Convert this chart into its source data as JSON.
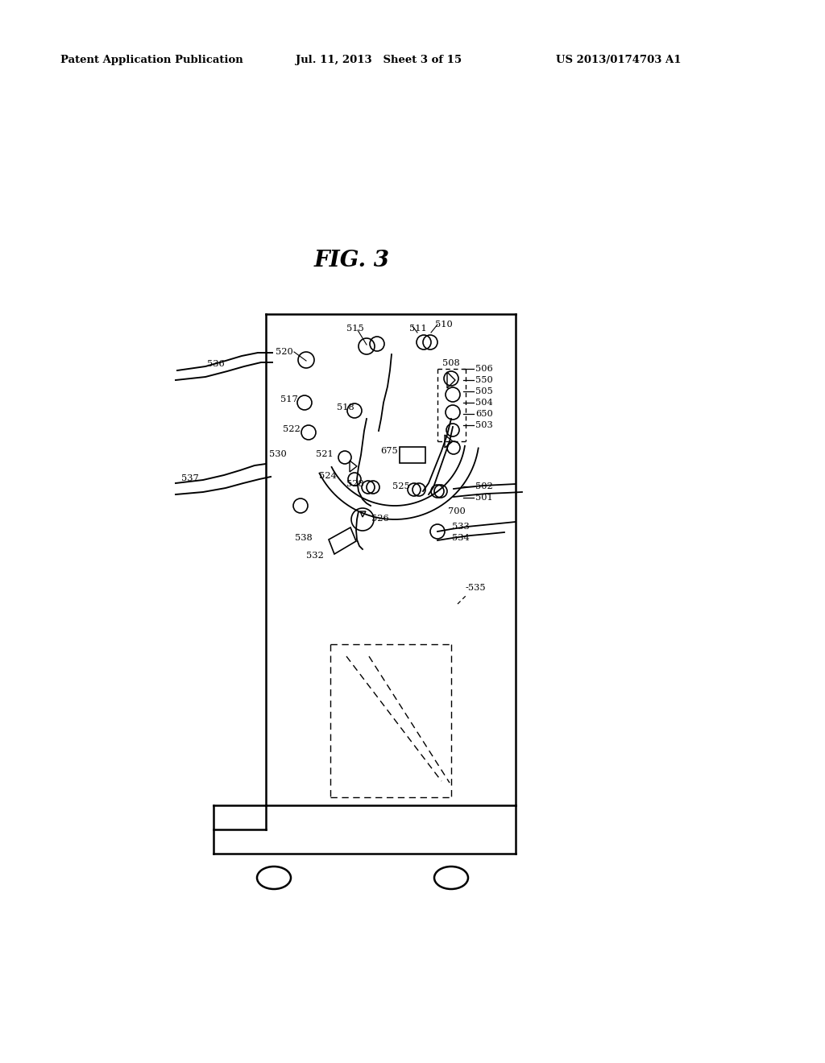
{
  "bg_color": "#ffffff",
  "title": "FIG. 3",
  "header_left": "Patent Application Publication",
  "header_mid": "Jul. 11, 2013   Sheet 3 of 15",
  "header_right": "US 2013/0174703 A1"
}
